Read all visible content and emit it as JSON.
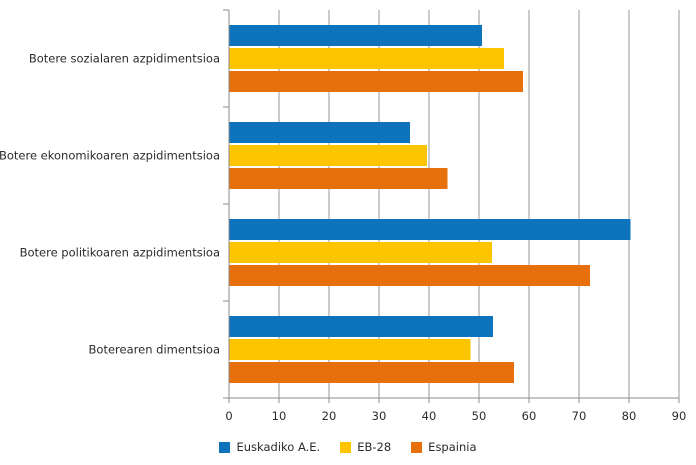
{
  "chart_data": {
    "type": "bar",
    "orientation": "horizontal",
    "title": "",
    "xlabel": "",
    "ylabel": "",
    "categories": [
      "Botere sozialaren azpidimentsioa",
      "Botere ekonomikoaren azpidimentsioa",
      "Botere politikoaren azpidimentsioa",
      "Boterearen dimentsioa"
    ],
    "series": [
      {
        "name": "Euskadiko A.E.",
        "color": "#0d73bc",
        "values": [
          50.6,
          36.2,
          80.3,
          52.8
        ]
      },
      {
        "name": "EB-28",
        "color": "#fdc400",
        "values": [
          55.0,
          39.6,
          52.6,
          48.3
        ]
      },
      {
        "name": "Espainia",
        "color": "#e7700d",
        "values": [
          58.8,
          43.7,
          72.2,
          57.0
        ]
      }
    ],
    "xlim": [
      0,
      90
    ],
    "x_tick_step": 10,
    "x_tick_labels": [
      "0",
      "10",
      "20",
      "30",
      "40",
      "50",
      "60",
      "70",
      "80",
      "90"
    ],
    "grid": "vertical-gridlines-on",
    "legend_position": "bottom-center"
  },
  "colors": {
    "background": "#ffffff",
    "gridline": "#9a9a9a",
    "axis": "#8c8c8c",
    "text": "#2b2b2b"
  }
}
